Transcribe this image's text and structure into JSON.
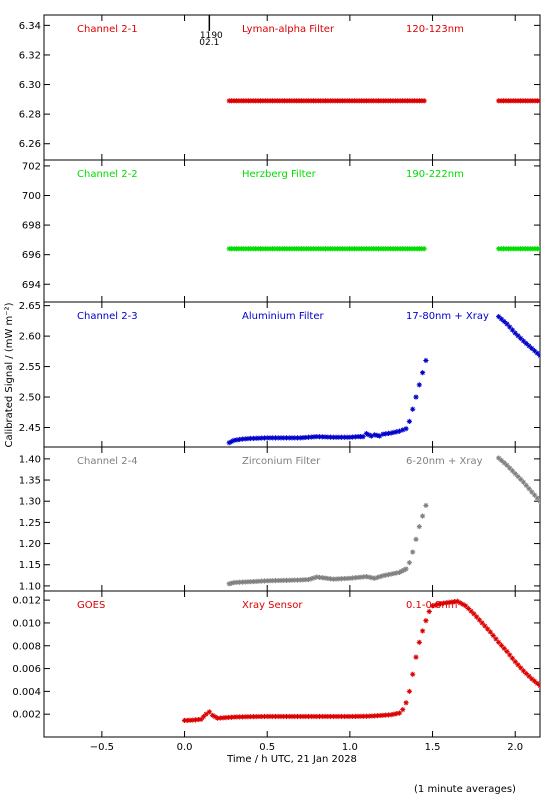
{
  "figure": {
    "ylabel": "Calibrated Signal / (mW m⁻²)",
    "xlabel": "Time / h UTC, 21 Jan 2028",
    "footnote": "(1 minute averages)",
    "marker": {
      "label_top": "1190",
      "label_bottom": "02.1",
      "x": 0.15
    }
  },
  "chart_data": [
    {
      "type": "scatter",
      "channel": "Channel 2-1",
      "filter": "Lyman-alpha Filter",
      "band": "120-123nm",
      "color": "#dd0000",
      "xlim": [
        -0.85,
        2.15
      ],
      "ylim": [
        6.249,
        6.347
      ],
      "yticks": [
        6.26,
        6.28,
        6.3,
        6.32,
        6.34
      ],
      "ytick_labels": [
        "6.26",
        "6.28",
        "6.30",
        "6.32",
        "6.34"
      ],
      "segments": [
        {
          "x": [
            0.27,
            1.45
          ],
          "y": [
            6.289,
            6.289
          ]
        },
        {
          "x": [
            1.9,
            2.15
          ],
          "y": [
            6.289,
            6.289
          ]
        }
      ]
    },
    {
      "type": "scatter",
      "channel": "Channel 2-2",
      "filter": "Herzberg Filter",
      "band": "190-222nm",
      "color": "#00dd00",
      "xlim": [
        -0.85,
        2.15
      ],
      "ylim": [
        692.8,
        702.4
      ],
      "yticks": [
        694,
        696,
        698,
        700,
        702
      ],
      "ytick_labels": [
        "694",
        "696",
        "698",
        "700",
        "702"
      ],
      "segments": [
        {
          "x": [
            0.27,
            1.45
          ],
          "y": [
            696.4,
            696.4
          ]
        },
        {
          "x": [
            1.9,
            2.15
          ],
          "y": [
            696.4,
            696.4
          ]
        }
      ]
    },
    {
      "type": "scatter",
      "channel": "Channel 2-3",
      "filter": "Aluminium Filter",
      "band": "17-80nm + Xray",
      "color": "#0000cc",
      "xlim": [
        -0.85,
        2.15
      ],
      "ylim": [
        2.418,
        2.656
      ],
      "yticks": [
        2.45,
        2.5,
        2.55,
        2.6,
        2.65
      ],
      "ytick_labels": [
        "2.45",
        "2.50",
        "2.55",
        "2.60",
        "2.65"
      ],
      "points": {
        "x": [
          0.27,
          0.3,
          0.35,
          0.4,
          0.5,
          0.6,
          0.7,
          0.75,
          0.8,
          0.9,
          1.0,
          1.05,
          1.08,
          1.1,
          1.13,
          1.15,
          1.18,
          1.2,
          1.25,
          1.3,
          1.32,
          1.34,
          1.36,
          1.38,
          1.4,
          1.42,
          1.44,
          1.46,
          1.9,
          1.95,
          2.0,
          2.05,
          2.1,
          2.15
        ],
        "y": [
          2.425,
          2.429,
          2.431,
          2.432,
          2.433,
          2.433,
          2.433,
          2.434,
          2.435,
          2.434,
          2.434,
          2.435,
          2.435,
          2.44,
          2.436,
          2.438,
          2.436,
          2.439,
          2.441,
          2.444,
          2.446,
          2.448,
          2.46,
          2.48,
          2.5,
          2.52,
          2.54,
          2.56,
          2.632,
          2.62,
          2.605,
          2.592,
          2.58,
          2.568
        ]
      }
    },
    {
      "type": "scatter",
      "channel": "Channel 2-4",
      "filter": "Zirconium Filter",
      "band": "6-20nm + Xray",
      "color": "#808080",
      "xlim": [
        -0.85,
        2.15
      ],
      "ylim": [
        1.088,
        1.428
      ],
      "yticks": [
        1.1,
        1.15,
        1.2,
        1.25,
        1.3,
        1.35,
        1.4
      ],
      "ytick_labels": [
        "1.10",
        "1.15",
        "1.20",
        "1.25",
        "1.30",
        "1.35",
        "1.40"
      ],
      "points": {
        "x": [
          0.27,
          0.3,
          0.4,
          0.5,
          0.6,
          0.7,
          0.75,
          0.8,
          0.9,
          1.0,
          1.05,
          1.1,
          1.15,
          1.2,
          1.25,
          1.3,
          1.34,
          1.36,
          1.38,
          1.4,
          1.42,
          1.44,
          1.46,
          1.9,
          1.95,
          2.0,
          2.05,
          2.1,
          2.15
        ],
        "y": [
          1.105,
          1.108,
          1.11,
          1.112,
          1.113,
          1.114,
          1.115,
          1.121,
          1.116,
          1.118,
          1.12,
          1.122,
          1.118,
          1.124,
          1.128,
          1.132,
          1.14,
          1.155,
          1.18,
          1.21,
          1.24,
          1.265,
          1.29,
          1.402,
          1.385,
          1.365,
          1.345,
          1.322,
          1.3
        ]
      }
    },
    {
      "type": "scatter",
      "channel": "GOES",
      "filter": "Xray Sensor",
      "band": "0.1-0.8nm",
      "color": "#dd0000",
      "xlim": [
        -0.85,
        2.15
      ],
      "ylim": [
        0.0,
        0.0128
      ],
      "yticks": [
        0.002,
        0.004,
        0.006,
        0.008,
        0.01,
        0.012
      ],
      "ytick_labels": [
        "0.002",
        "0.004",
        "0.006",
        "0.008",
        "0.010",
        "0.012"
      ],
      "xticks": [
        -0.5,
        0.0,
        0.5,
        1.0,
        1.5,
        2.0
      ],
      "xtick_labels": [
        "−0.5",
        "0.0",
        "0.5",
        "1.0",
        "1.5",
        "2.0"
      ],
      "points": {
        "x": [
          0.0,
          0.05,
          0.1,
          0.13,
          0.15,
          0.17,
          0.2,
          0.25,
          0.3,
          0.4,
          0.5,
          0.6,
          0.7,
          0.8,
          0.9,
          1.0,
          1.1,
          1.15,
          1.2,
          1.25,
          1.3,
          1.32,
          1.34,
          1.36,
          1.38,
          1.4,
          1.42,
          1.44,
          1.46,
          1.48,
          1.5,
          1.55,
          1.6,
          1.65,
          1.7,
          1.75,
          1.8,
          1.85,
          1.9,
          1.95,
          2.0,
          2.05,
          2.1,
          2.15
        ],
        "y": [
          0.00145,
          0.00148,
          0.00155,
          0.002,
          0.0022,
          0.0019,
          0.00165,
          0.0017,
          0.00175,
          0.00178,
          0.0018,
          0.0018,
          0.0018,
          0.0018,
          0.0018,
          0.0018,
          0.00182,
          0.00185,
          0.0019,
          0.00195,
          0.0021,
          0.0024,
          0.003,
          0.004,
          0.0055,
          0.007,
          0.0083,
          0.0093,
          0.0102,
          0.011,
          0.0115,
          0.0117,
          0.0118,
          0.0119,
          0.0115,
          0.0108,
          0.01,
          0.0092,
          0.0083,
          0.0075,
          0.0066,
          0.0058,
          0.0051,
          0.0045
        ]
      }
    }
  ]
}
